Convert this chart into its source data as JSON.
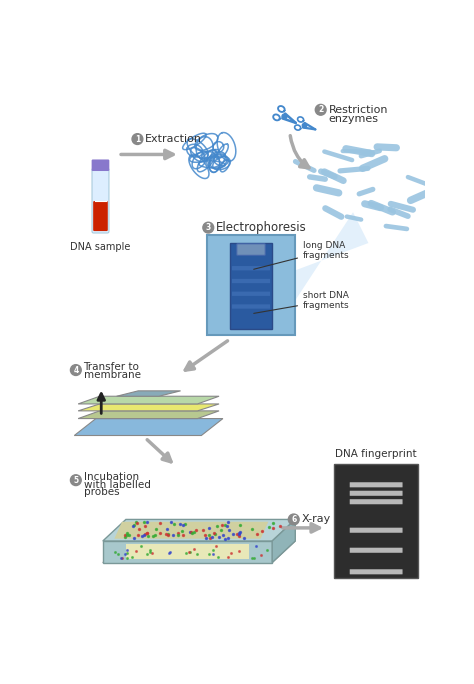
{
  "bg_color": "#ffffff",
  "dna_sample_label": "DNA sample",
  "long_dna_label": "long DNA\nfragments",
  "short_dna_label": "short DNA\nfragments",
  "fingerprint_label": "DNA fingerprint",
  "tube_body_color": "#ddeeff",
  "tube_cap_color": "#8878cc",
  "tube_blood_color": "#cc2200",
  "tube_blood2_color": "#ffffff",
  "arrow_color": "#aaaaaa",
  "dna_tangle_color": "#4488cc",
  "scissors_color": "#4488cc",
  "fragment_color": "#99c4e0",
  "gel_outer_color": "#8bbcdc",
  "gel_inner_color": "#2a5aa0",
  "gel_top_color": "#7aaac8",
  "gel_well_color": "#7090b8",
  "gel_band_color": "#3a6ab0",
  "beam_color": "#cce4f8",
  "transfer_base_color": "#88b8dc",
  "transfer_gel_color": "#b8c890",
  "transfer_yellow_color": "#e8e870",
  "transfer_green_color": "#b8d8a8",
  "incub_body_color": "#a8c8cc",
  "incub_top_color": "#b8d4d8",
  "incub_side_color": "#90b4b8",
  "incub_inner_color": "#e8e8b8",
  "incub_inner_top_color": "#d0d0a0",
  "fp_bg": "#2d2d2d",
  "fp_band_color": "#b8b8b8",
  "label_circle_color": "#888888",
  "label_text_color": "#333333",
  "annotation_color": "#333333"
}
